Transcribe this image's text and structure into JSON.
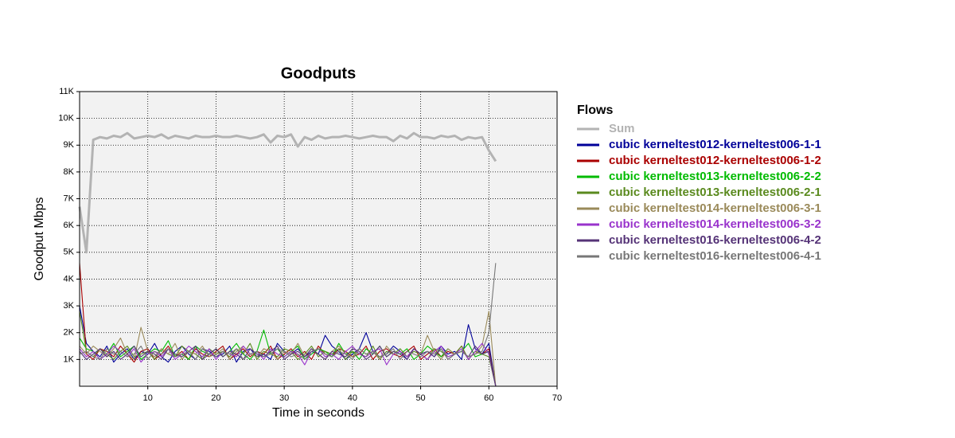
{
  "chart_data": {
    "type": "line",
    "title": "Goodputs",
    "x_label": "Time in seconds",
    "y_label": "Goodput Mbps",
    "legend_title": "Flows",
    "legend_position": "right",
    "grid": true,
    "xlim": [
      0,
      70
    ],
    "xticks": [
      10,
      20,
      30,
      40,
      50,
      60,
      70
    ],
    "ylim": [
      0,
      11000
    ],
    "yticks": [
      {
        "value": 1000,
        "label": "1K"
      },
      {
        "value": 2000,
        "label": "2K"
      },
      {
        "value": 3000,
        "label": "3K"
      },
      {
        "value": 4000,
        "label": "4K"
      },
      {
        "value": 5000,
        "label": "5K"
      },
      {
        "value": 6000,
        "label": "6K"
      },
      {
        "value": 7000,
        "label": "7K"
      },
      {
        "value": 8000,
        "label": "8K"
      },
      {
        "value": 9000,
        "label": "9K"
      },
      {
        "value": 10000,
        "label": "10K"
      },
      {
        "value": 11000,
        "label": "11K"
      }
    ],
    "x": [
      0,
      1,
      2,
      3,
      4,
      5,
      6,
      7,
      8,
      9,
      10,
      11,
      12,
      13,
      14,
      15,
      16,
      17,
      18,
      19,
      20,
      21,
      22,
      23,
      24,
      25,
      26,
      27,
      28,
      29,
      30,
      31,
      32,
      33,
      34,
      35,
      36,
      37,
      38,
      39,
      40,
      41,
      42,
      43,
      44,
      45,
      46,
      47,
      48,
      49,
      50,
      51,
      52,
      53,
      54,
      55,
      56,
      57,
      58,
      59,
      60,
      61
    ],
    "series": [
      {
        "name": "Sum",
        "color": "#b3b3b3",
        "values": [
          6700,
          5000,
          9200,
          9300,
          9250,
          9350,
          9300,
          9450,
          9250,
          9300,
          9350,
          9300,
          9400,
          9250,
          9350,
          9300,
          9250,
          9350,
          9300,
          9300,
          9350,
          9300,
          9300,
          9350,
          9300,
          9250,
          9300,
          9400,
          9100,
          9350,
          9300,
          9400,
          8950,
          9300,
          9200,
          9350,
          9250,
          9300,
          9300,
          9350,
          9300,
          9250,
          9300,
          9350,
          9300,
          9300,
          9150,
          9350,
          9250,
          9450,
          9300,
          9300,
          9250,
          9350,
          9300,
          9350,
          9200,
          9300,
          9250,
          9300,
          8800,
          8400
        ]
      },
      {
        "name": "cubic kerneltest012-kerneltest006-1-1",
        "color": "#000099",
        "values": [
          3000,
          1600,
          1300,
          1100,
          1500,
          900,
          1200,
          1400,
          1000,
          1300,
          1200,
          1600,
          1100,
          900,
          1300,
          1500,
          1200,
          1000,
          1400,
          1300,
          1100,
          1200,
          1500,
          900,
          1300,
          1400,
          1100,
          1200,
          1000,
          1600,
          1300,
          1200,
          1400,
          1100,
          1300,
          1200,
          1900,
          1500,
          1300,
          1000,
          1200,
          1400,
          2000,
          1300,
          1100,
          1200,
          1500,
          1300,
          1000,
          1400,
          1200,
          1300,
          1100,
          1500,
          1200,
          1300,
          1000,
          2300,
          1400,
          1200,
          1600,
          0
        ]
      },
      {
        "name": "cubic kerneltest012-kerneltest006-1-2",
        "color": "#aa0000",
        "values": [
          4600,
          1200,
          1000,
          1400,
          1300,
          1100,
          1500,
          1200,
          900,
          1300,
          1400,
          1000,
          1200,
          1500,
          1100,
          1300,
          1000,
          1400,
          1200,
          1100,
          1300,
          1500,
          1000,
          1200,
          1400,
          1100,
          1300,
          1200,
          1500,
          1000,
          1200,
          1400,
          1100,
          1300,
          1000,
          1500,
          1200,
          1100,
          1400,
          1300,
          1100,
          1200,
          1500,
          1000,
          1300,
          1400,
          1200,
          1100,
          1300,
          1500,
          1000,
          1200,
          1400,
          1100,
          1300,
          1200,
          1500,
          1000,
          1300,
          1200,
          1400,
          0
        ]
      },
      {
        "name": "cubic kerneltest013-kerneltest006-2-2",
        "color": "#00bb00",
        "values": [
          1800,
          1400,
          1300,
          1000,
          1200,
          1600,
          1100,
          1300,
          1500,
          1000,
          1200,
          1400,
          1300,
          1700,
          1100,
          1200,
          1000,
          1500,
          1300,
          1200,
          1400,
          1100,
          1300,
          1600,
          1200,
          1000,
          1300,
          2100,
          1200,
          1400,
          1100,
          1300,
          1500,
          1000,
          1200,
          1400,
          1300,
          1100,
          1600,
          1200,
          1300,
          1000,
          1400,
          1200,
          1500,
          1100,
          1300,
          1200,
          1400,
          1000,
          1200,
          1500,
          1300,
          1100,
          1400,
          1200,
          1300,
          1600,
          1100,
          1200,
          1300,
          0
        ]
      },
      {
        "name": "cubic kerneltest013-kerneltest006-2-1",
        "color": "#5a8a1e",
        "values": [
          2800,
          1300,
          1100,
          1400,
          1200,
          1000,
          1300,
          1500,
          1100,
          1200,
          1300,
          1000,
          1400,
          1200,
          1100,
          1500,
          1300,
          1200,
          1000,
          1400,
          1200,
          1300,
          1100,
          1400,
          1200,
          1600,
          1000,
          1300,
          1200,
          1100,
          1400,
          1300,
          1000,
          1200,
          1500,
          1100,
          1300,
          1200,
          1400,
          1000,
          1300,
          1200,
          1100,
          1500,
          1000,
          1300,
          1200,
          1400,
          1100,
          1300,
          1200,
          1000,
          1400,
          1300,
          1100,
          1200,
          1500,
          1000,
          1300,
          1200,
          1100,
          0
        ]
      },
      {
        "name": "cubic kerneltest014-kerneltest006-3-1",
        "color": "#9a8a5a",
        "values": [
          1500,
          1200,
          1500,
          1300,
          1100,
          1400,
          1800,
          1200,
          1000,
          2200,
          1300,
          1100,
          1400,
          1200,
          1600,
          1000,
          1300,
          1200,
          1500,
          1100,
          1200,
          1400,
          1000,
          1300,
          1500,
          1200,
          1100,
          1400,
          1300,
          1000,
          1300,
          1200,
          1600,
          1100,
          1400,
          1200,
          1000,
          1300,
          1500,
          1200,
          1100,
          1400,
          1200,
          1300,
          1000,
          1500,
          1200,
          1300,
          1100,
          1400,
          1200,
          1900,
          1300,
          1000,
          1400,
          1200,
          1300,
          1100,
          1200,
          1500,
          2800,
          0
        ]
      },
      {
        "name": "cubic kerneltest014-kerneltest006-3-2",
        "color": "#9933cc",
        "values": [
          1400,
          1100,
          1300,
          1000,
          1200,
          1500,
          1300,
          1100,
          1400,
          900,
          1200,
          1300,
          1100,
          1400,
          1000,
          1200,
          1500,
          1300,
          1100,
          1400,
          1000,
          1300,
          1200,
          1100,
          1500,
          1200,
          1300,
          1000,
          1400,
          1200,
          1100,
          1300,
          1200,
          800,
          1300,
          1400,
          1100,
          1200,
          1000,
          1300,
          1500,
          1200,
          1100,
          1300,
          1400,
          800,
          1200,
          1300,
          1100,
          1400,
          1200,
          1000,
          1300,
          1500,
          1100,
          1200,
          1400,
          1000,
          1300,
          1600,
          1200,
          0
        ]
      },
      {
        "name": "cubic kerneltest016-kerneltest006-4-2",
        "color": "#553377",
        "values": [
          1300,
          1000,
          1200,
          1400,
          1100,
          1300,
          1000,
          1200,
          1500,
          1100,
          1300,
          1200,
          1000,
          1400,
          1200,
          1100,
          1300,
          1500,
          1000,
          1200,
          1400,
          1100,
          1300,
          1200,
          1000,
          1400,
          1200,
          1100,
          1300,
          1500,
          1000,
          1200,
          1300,
          1100,
          1400,
          1200,
          1000,
          1300,
          1200,
          1100,
          1400,
          1300,
          1000,
          1200,
          1500,
          1100,
          1300,
          1200,
          1000,
          1400,
          1200,
          1300,
          1100,
          1400,
          1000,
          1200,
          1300,
          1100,
          1500,
          1200,
          1300,
          0
        ]
      },
      {
        "name": "cubic kerneltest016-kerneltest006-4-1",
        "color": "#777777",
        "values": [
          1200,
          1300,
          1100,
          1000,
          1400,
          1200,
          1300,
          1100,
          1200,
          1500,
          1000,
          1300,
          1200,
          1400,
          1100,
          1200,
          1300,
          1000,
          1400,
          1200,
          1100,
          1300,
          1200,
          1400,
          1000,
          1200,
          1300,
          1100,
          1200,
          1400,
          1300,
          1100,
          1200,
          1000,
          1300,
          1400,
          1200,
          1100,
          1300,
          1200,
          1000,
          1400,
          1200,
          1300,
          1100,
          1200,
          1400,
          1000,
          1300,
          1200,
          1100,
          1300,
          1200,
          1400,
          1000,
          1200,
          1300,
          1100,
          1200,
          1300,
          2000,
          4600
        ]
      }
    ]
  }
}
